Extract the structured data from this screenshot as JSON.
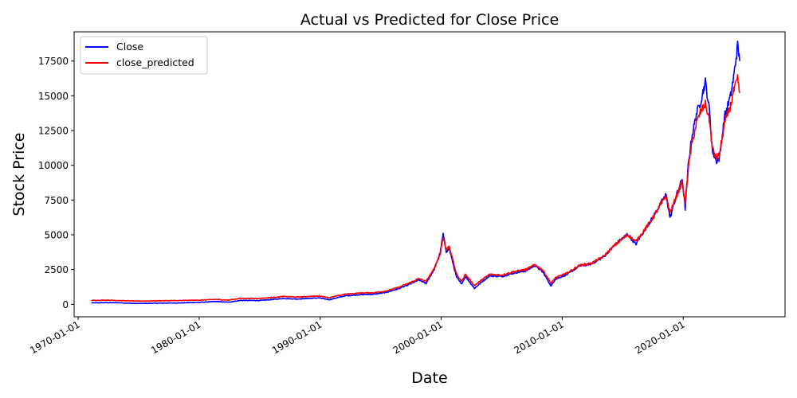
{
  "chart_data": {
    "type": "line",
    "title": "Actual vs Predicted for Close Price",
    "xlabel": "Date",
    "ylabel": "Stock Price",
    "xlim": [
      "1969-09-01",
      "2028-06-01"
    ],
    "ylim": [
      -900,
      19600
    ],
    "x_ticks": [
      "1970-01-01",
      "1980-01-01",
      "1990-01-01",
      "2000-01-01",
      "2010-01-01",
      "2020-01-01"
    ],
    "y_ticks": [
      0,
      2500,
      5000,
      7500,
      10000,
      12500,
      15000,
      17500
    ],
    "grid": false,
    "legend": "top-left",
    "series": [
      {
        "name": "Close",
        "color": "#0000ff",
        "points": [
          [
            "1971-02-01",
            100
          ],
          [
            "1972-06-01",
            120
          ],
          [
            "1973-06-01",
            110
          ],
          [
            "1974-10-01",
            60
          ],
          [
            "1976-06-01",
            80
          ],
          [
            "1978-06-01",
            100
          ],
          [
            "1980-01-01",
            140
          ],
          [
            "1981-06-01",
            200
          ],
          [
            "1982-06-01",
            150
          ],
          [
            "1983-06-01",
            280
          ],
          [
            "1985-01-01",
            270
          ],
          [
            "1987-01-01",
            420
          ],
          [
            "1988-01-01",
            380
          ],
          [
            "1989-12-01",
            460
          ],
          [
            "1990-10-01",
            330
          ],
          [
            "1992-01-01",
            600
          ],
          [
            "1993-06-01",
            700
          ],
          [
            "1994-06-01",
            720
          ],
          [
            "1995-06-01",
            850
          ],
          [
            "1996-06-01",
            1100
          ],
          [
            "1997-06-01",
            1450
          ],
          [
            "1998-03-01",
            1750
          ],
          [
            "1998-10-01",
            1500
          ],
          [
            "1999-06-01",
            2500
          ],
          [
            "1999-12-01",
            3700
          ],
          [
            "2000-03-01",
            5050
          ],
          [
            "2000-06-01",
            3800
          ],
          [
            "2000-09-01",
            4000
          ],
          [
            "2001-04-01",
            2000
          ],
          [
            "2001-09-01",
            1450
          ],
          [
            "2002-01-01",
            2000
          ],
          [
            "2002-10-01",
            1150
          ],
          [
            "2003-06-01",
            1650
          ],
          [
            "2004-01-01",
            2050
          ],
          [
            "2005-01-01",
            2000
          ],
          [
            "2006-01-01",
            2250
          ],
          [
            "2007-01-01",
            2400
          ],
          [
            "2007-10-01",
            2800
          ],
          [
            "2008-06-01",
            2300
          ],
          [
            "2009-02-01",
            1300
          ],
          [
            "2009-06-01",
            1800
          ],
          [
            "2010-06-01",
            2150
          ],
          [
            "2011-06-01",
            2750
          ],
          [
            "2012-06-01",
            2900
          ],
          [
            "2013-06-01",
            3400
          ],
          [
            "2014-06-01",
            4350
          ],
          [
            "2015-06-01",
            5050
          ],
          [
            "2016-02-01",
            4300
          ],
          [
            "2016-06-01",
            4800
          ],
          [
            "2017-06-01",
            6150
          ],
          [
            "2018-08-01",
            7900
          ],
          [
            "2018-12-01",
            6200
          ],
          [
            "2019-06-01",
            7800
          ],
          [
            "2019-12-01",
            9000
          ],
          [
            "2020-03-01",
            6900
          ],
          [
            "2020-06-01",
            10000
          ],
          [
            "2020-09-01",
            11800
          ],
          [
            "2021-02-01",
            13700
          ],
          [
            "2021-06-01",
            14500
          ],
          [
            "2021-11-01",
            16000
          ],
          [
            "2022-03-01",
            14000
          ],
          [
            "2022-06-01",
            11000
          ],
          [
            "2022-10-01",
            10300
          ],
          [
            "2023-01-01",
            10500
          ],
          [
            "2023-06-01",
            13500
          ],
          [
            "2023-12-01",
            15000
          ],
          [
            "2024-03-01",
            16300
          ],
          [
            "2024-07-01",
            18600
          ],
          [
            "2024-09-01",
            17500
          ]
        ]
      },
      {
        "name": "close_predicted",
        "color": "#ff0000",
        "points": [
          [
            "1971-02-01",
            280
          ],
          [
            "1972-06-01",
            300
          ],
          [
            "1973-06-01",
            270
          ],
          [
            "1974-10-01",
            230
          ],
          [
            "1976-06-01",
            250
          ],
          [
            "1978-06-01",
            270
          ],
          [
            "1980-01-01",
            300
          ],
          [
            "1981-06-01",
            350
          ],
          [
            "1982-06-01",
            300
          ],
          [
            "1983-06-01",
            430
          ],
          [
            "1985-01-01",
            420
          ],
          [
            "1987-01-01",
            560
          ],
          [
            "1988-01-01",
            520
          ],
          [
            "1989-12-01",
            600
          ],
          [
            "1990-10-01",
            480
          ],
          [
            "1992-01-01",
            720
          ],
          [
            "1993-06-01",
            820
          ],
          [
            "1994-06-01",
            830
          ],
          [
            "1995-06-01",
            950
          ],
          [
            "1996-06-01",
            1200
          ],
          [
            "1997-06-01",
            1550
          ],
          [
            "1998-03-01",
            1850
          ],
          [
            "1998-10-01",
            1650
          ],
          [
            "1999-06-01",
            2550
          ],
          [
            "1999-12-01",
            3600
          ],
          [
            "2000-03-01",
            4850
          ],
          [
            "2000-06-01",
            3900
          ],
          [
            "2000-09-01",
            4200
          ],
          [
            "2001-04-01",
            2200
          ],
          [
            "2001-09-01",
            1650
          ],
          [
            "2002-01-01",
            2150
          ],
          [
            "2002-10-01",
            1350
          ],
          [
            "2003-06-01",
            1800
          ],
          [
            "2004-01-01",
            2150
          ],
          [
            "2005-01-01",
            2100
          ],
          [
            "2006-01-01",
            2350
          ],
          [
            "2007-01-01",
            2500
          ],
          [
            "2007-10-01",
            2850
          ],
          [
            "2008-06-01",
            2450
          ],
          [
            "2009-02-01",
            1500
          ],
          [
            "2009-06-01",
            1900
          ],
          [
            "2010-06-01",
            2250
          ],
          [
            "2011-06-01",
            2800
          ],
          [
            "2012-06-01",
            2950
          ],
          [
            "2013-06-01",
            3450
          ],
          [
            "2014-06-01",
            4300
          ],
          [
            "2015-06-01",
            5000
          ],
          [
            "2016-02-01",
            4500
          ],
          [
            "2016-06-01",
            4900
          ],
          [
            "2017-06-01",
            6100
          ],
          [
            "2018-08-01",
            7800
          ],
          [
            "2018-12-01",
            6600
          ],
          [
            "2019-06-01",
            7700
          ],
          [
            "2019-12-01",
            8800
          ],
          [
            "2020-03-01",
            7300
          ],
          [
            "2020-06-01",
            9700
          ],
          [
            "2020-09-01",
            11300
          ],
          [
            "2021-02-01",
            13000
          ],
          [
            "2021-06-01",
            13800
          ],
          [
            "2021-11-01",
            14400
          ],
          [
            "2022-03-01",
            13300
          ],
          [
            "2022-06-01",
            11200
          ],
          [
            "2022-10-01",
            10500
          ],
          [
            "2023-01-01",
            10800
          ],
          [
            "2023-06-01",
            13000
          ],
          [
            "2023-12-01",
            14300
          ],
          [
            "2024-03-01",
            15300
          ],
          [
            "2024-07-01",
            16200
          ],
          [
            "2024-09-01",
            15200
          ]
        ]
      }
    ]
  }
}
